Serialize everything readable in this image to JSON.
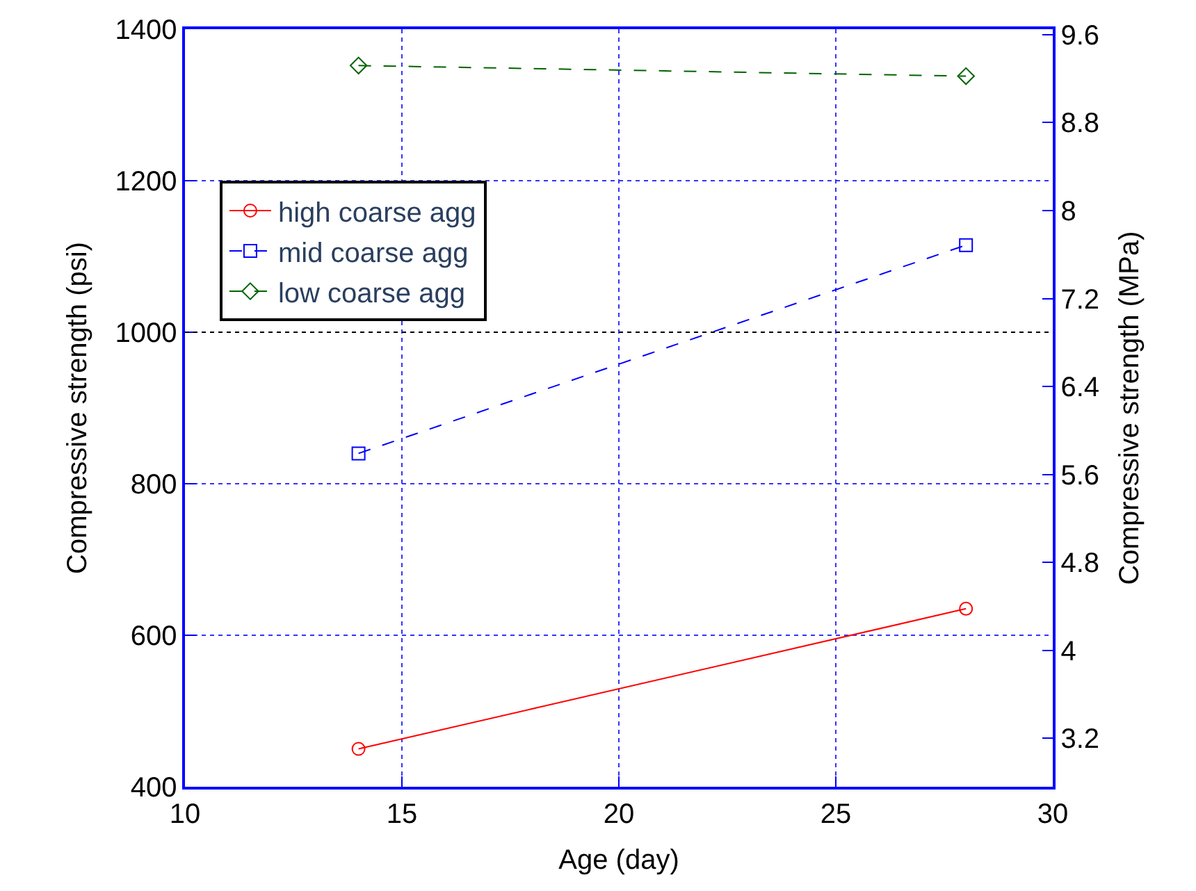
{
  "chart_data": {
    "type": "line",
    "xlabel": "Age (day)",
    "ylabel": "Compressive strength (psi)",
    "y2label": "Compressive strength (MPa)",
    "x": [
      14,
      28
    ],
    "series": [
      {
        "name": "high coarse agg",
        "color": "#ff0000",
        "values": [
          450,
          635
        ],
        "marker": "circle",
        "line_style": "solid"
      },
      {
        "name": "mid coarse agg",
        "color": "#0000ff",
        "values": [
          840,
          1115
        ],
        "marker": "square",
        "line_style": "dashed"
      },
      {
        "name": "low coarse agg",
        "color": "#006400",
        "values": [
          1352,
          1338
        ],
        "marker": "diamond",
        "line_style": "dashed"
      }
    ],
    "xlim": [
      10,
      30
    ],
    "xticks": [
      10,
      15,
      20,
      25,
      30
    ],
    "ylim": [
      400,
      1400
    ],
    "yticks": [
      400,
      600,
      800,
      1000,
      1200,
      1400
    ],
    "y2lim": [
      2.76,
      9.65
    ],
    "y2ticks": [
      3.2,
      4,
      4.8,
      5.6,
      6.4,
      7.2,
      8,
      8.8,
      9.6
    ],
    "ref_lines": [
      {
        "axis": "y",
        "value": 1000,
        "color": "#000000",
        "line_style": "dotted"
      }
    ],
    "grid": true,
    "legend": "top left"
  }
}
